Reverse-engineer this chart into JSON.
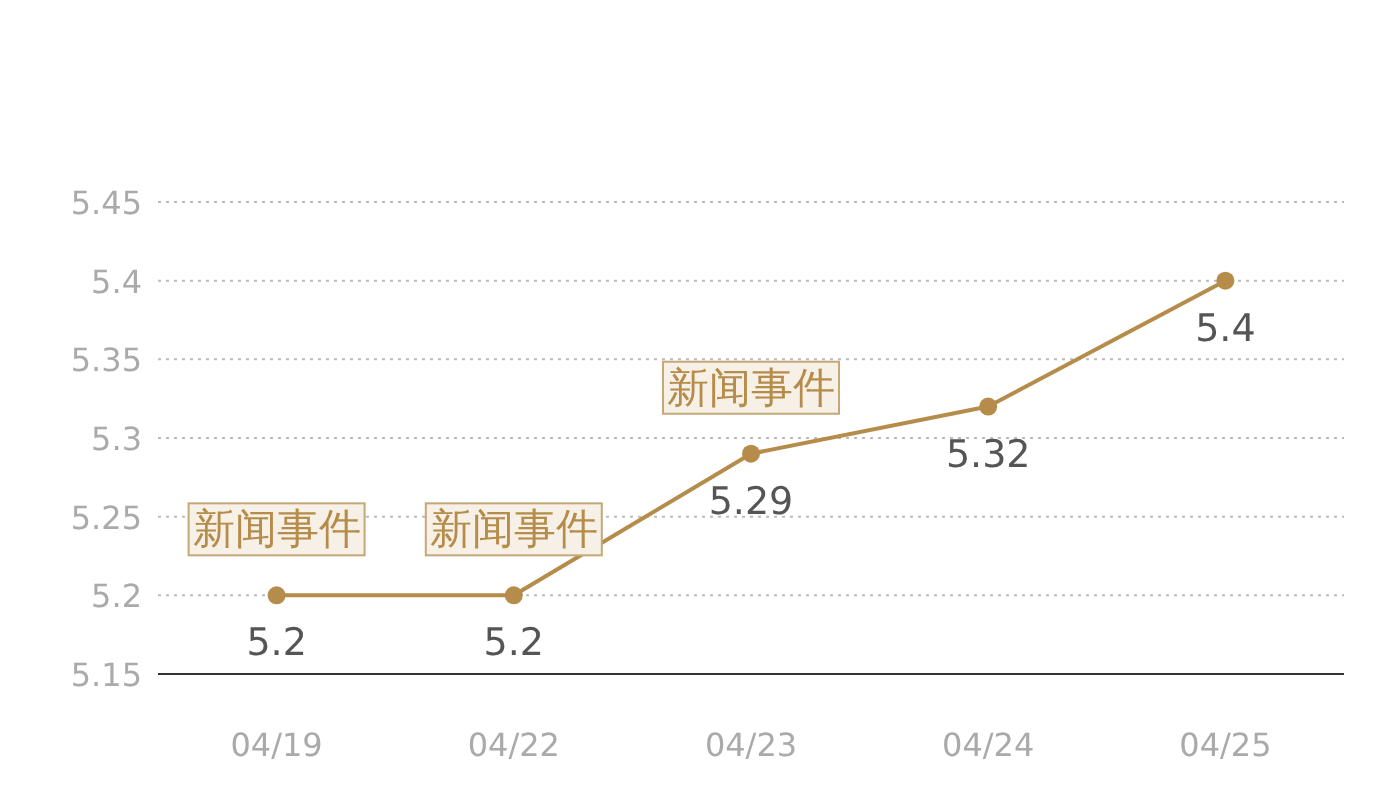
{
  "chart_data": {
    "type": "line",
    "categories": [
      "04/19",
      "04/22",
      "04/23",
      "04/24",
      "04/25"
    ],
    "values": [
      5.2,
      5.2,
      5.29,
      5.32,
      5.4
    ],
    "color": "#b58c4a",
    "marker": "circle",
    "data_labels": true,
    "grid": "y",
    "ylim": [
      5.15,
      5.45
    ],
    "yticks": [
      5.15,
      5.2,
      5.25,
      5.3,
      5.35,
      5.4,
      5.45
    ],
    "annotations": [
      {
        "text": "新闻事件",
        "x": "04/19",
        "y": 5.2
      },
      {
        "text": "新闻事件",
        "x": "04/22",
        "y": 5.2
      },
      {
        "text": "新闻事件",
        "x": "04/23",
        "y": 5.29
      }
    ]
  }
}
